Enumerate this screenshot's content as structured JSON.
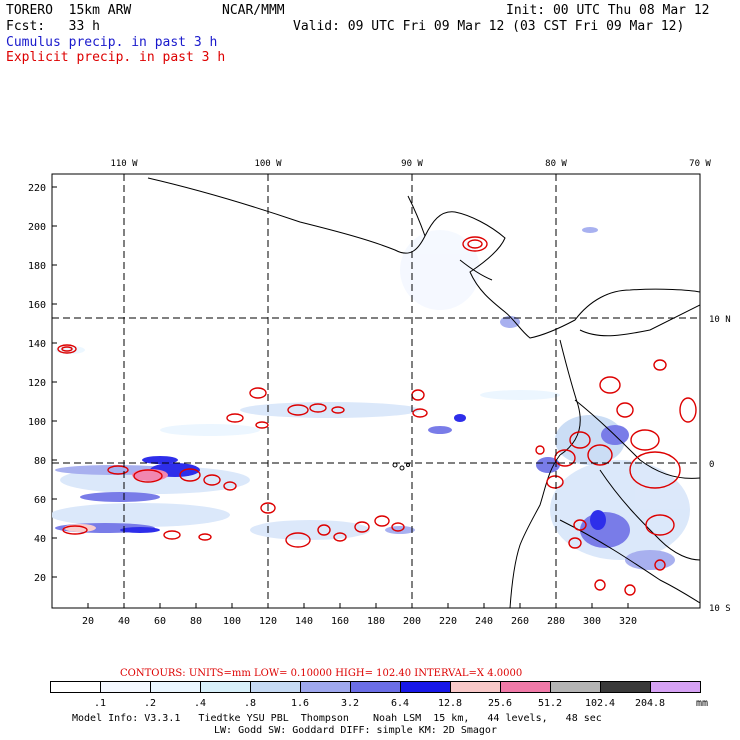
{
  "header": {
    "model": "TORERO  15km ARW",
    "center": "NCAR/MMM",
    "init": "Init: 00 UTC Thu 08 Mar 12",
    "fcst": "Fcst:   33 h",
    "valid": "Valid: 09 UTC Fri 09 Mar 12 (03 CST Fri 09 Mar 12)",
    "legend_cumulus": "Cumulus precip. in past 3 h",
    "legend_explicit": "Explicit precip. in past 3 h"
  },
  "colors": {
    "cumulus": "#1a1acc",
    "explicit": "#dd0000",
    "land_outline": "#000000",
    "grid": "#000000"
  },
  "map": {
    "lon_labels": [
      "110 W",
      "100 W",
      "90 W",
      "80 W",
      "70 W"
    ],
    "lat_labels": [
      "10 N",
      "0",
      "10 S"
    ],
    "x_ticks": [
      "20",
      "40",
      "60",
      "80",
      "100",
      "120",
      "140",
      "160",
      "180",
      "200",
      "220",
      "240",
      "260",
      "280",
      "300",
      "320"
    ],
    "y_ticks": [
      "220",
      "200",
      "180",
      "160",
      "140",
      "120",
      "100",
      "80",
      "60",
      "40",
      "20"
    ]
  },
  "contours": {
    "units_line": "CONTOURS:  UNITS=mm  LOW= 0.10000      HIGH=  102.40      INTERVAL=X  4.0000"
  },
  "colorbar": {
    "units": "mm",
    "colors": [
      "#ffffff",
      "#f4f8ff",
      "#eaf6ff",
      "#d8f0fa",
      "#c6daf4",
      "#9fa8ee",
      "#6b6ee6",
      "#1818e8",
      "#f8c8c8",
      "#f07aa8",
      "#b4b4b4",
      "#3a3a3a",
      "#d6a2f4"
    ],
    "labels": [
      ".1",
      ".2",
      ".4",
      ".8",
      "1.6",
      "3.2",
      "6.4",
      "12.8",
      "25.6",
      "51.2",
      "102.4",
      "204.8"
    ]
  },
  "footer": {
    "line1": "Model Info: V3.3.1   Tiedtke YSU PBL  Thompson    Noah LSM  15 km,   44 levels,   48 sec",
    "line2": "LW: Godd SW: Goddard DIFF: simple KM: 2D Smagor"
  }
}
